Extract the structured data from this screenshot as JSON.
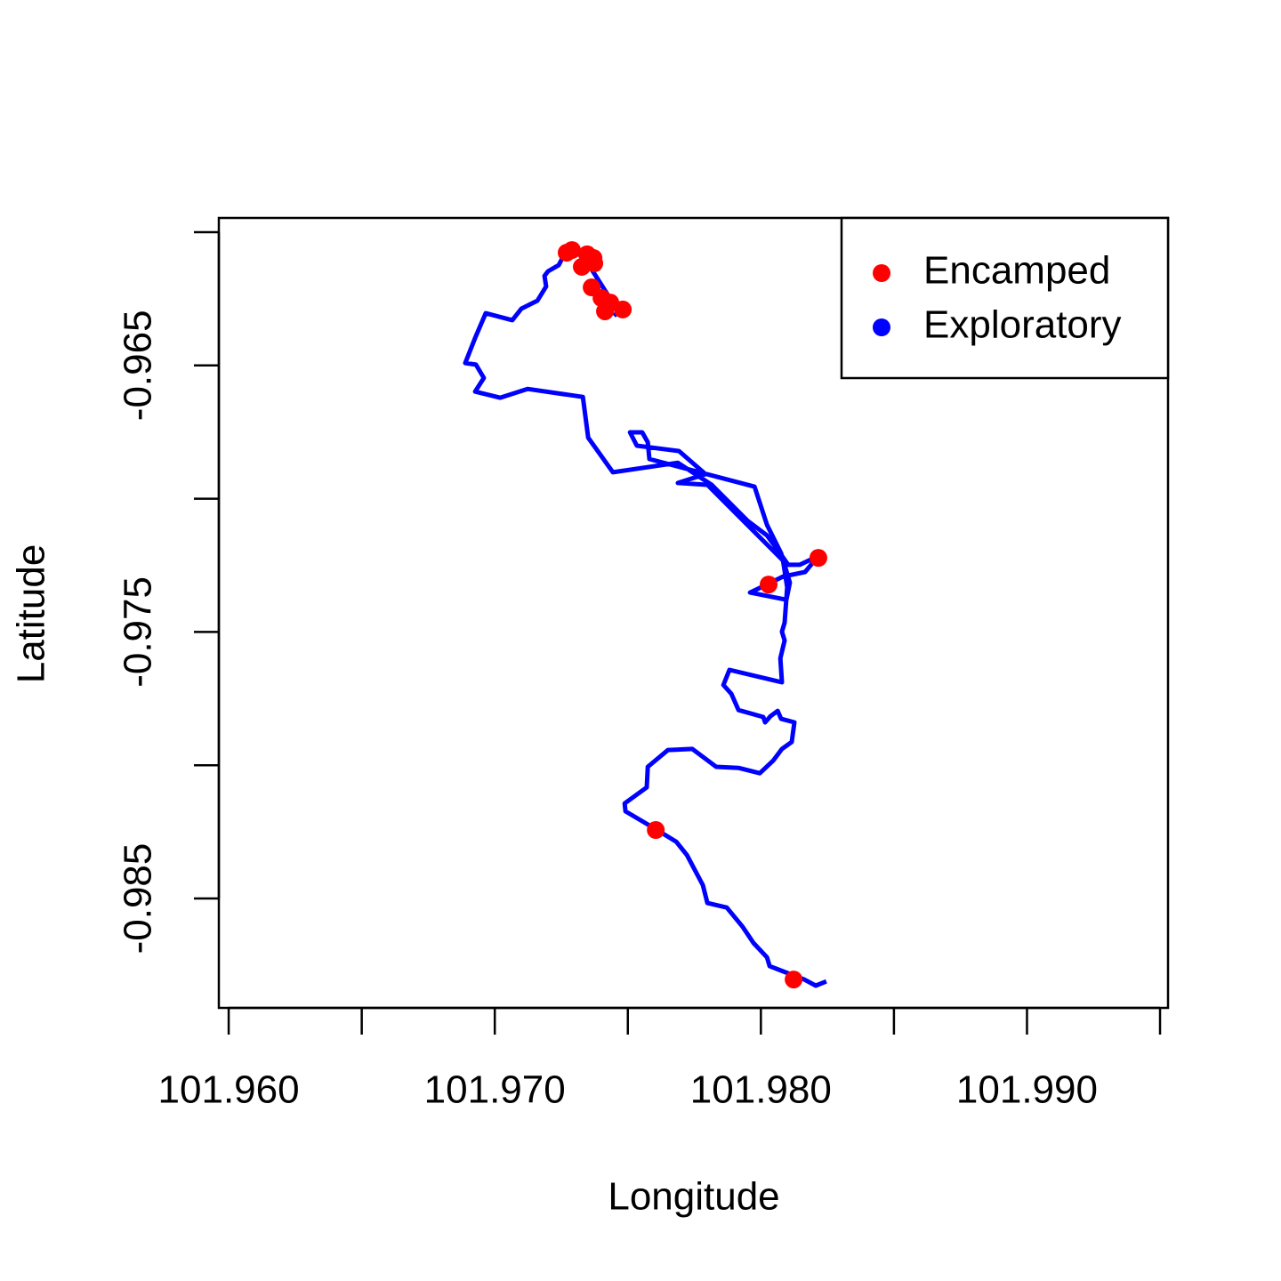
{
  "chart_data": {
    "type": "line",
    "xlabel": "Longitude",
    "ylabel": "Latitude",
    "xlim": [
      101.95963,
      101.9953
    ],
    "ylim": [
      -0.989105,
      -0.959466
    ],
    "xticks": [
      {
        "value": 101.96,
        "label": "101.960"
      },
      {
        "value": 101.965,
        "label": null
      },
      {
        "value": 101.97,
        "label": "101.970"
      },
      {
        "value": 101.975,
        "label": null
      },
      {
        "value": 101.98,
        "label": "101.980"
      },
      {
        "value": 101.985,
        "label": null
      },
      {
        "value": 101.99,
        "label": "101.990"
      },
      {
        "value": 101.995,
        "label": null
      }
    ],
    "yticks": [
      {
        "value": -0.96,
        "label": null
      },
      -0.965,
      {
        "value": -0.97,
        "label": null
      },
      -0.975,
      {
        "value": -0.98,
        "label": null
      },
      -0.985
    ],
    "legend": "top-right",
    "series": [
      {
        "name": "Encamped",
        "color": "#ff0000",
        "mode": "markers",
        "x": [
          101.9729,
          101.9727,
          101.97347,
          101.97371,
          101.97374,
          101.97327,
          101.97364,
          101.97401,
          101.97434,
          101.97481,
          101.97414,
          101.98216,
          101.98029,
          101.97605,
          101.98123
        ],
        "values": [
          -0.96067,
          -0.96077,
          -0.96083,
          -0.96097,
          -0.96117,
          -0.9613,
          -0.96207,
          -0.96247,
          -0.96264,
          -0.9629,
          -0.96297,
          -0.97222,
          -0.97322,
          -0.98243,
          -0.98804
        ]
      },
      {
        "name": "Exploratory",
        "color": "#0000ff",
        "mode": "lines",
        "x": [
          101.97448,
          101.97464,
          101.97347,
          101.97314,
          101.9728,
          101.97254,
          101.9724,
          101.972,
          101.97187,
          101.97193,
          101.9716,
          101.971,
          101.97066,
          101.96966,
          101.96926,
          101.96889,
          101.96929,
          101.96959,
          101.96926,
          101.9702,
          101.97123,
          101.97331,
          101.97351,
          101.97444,
          101.97688,
          101.97815,
          101.97949,
          101.98023,
          101.98063,
          101.98103,
          101.98146,
          101.98216,
          101.98166,
          101.98083,
          101.98016,
          101.97959,
          101.98096,
          101.98109,
          101.98076,
          101.98023,
          101.97976,
          101.97581,
          101.97575,
          101.97554,
          101.97508,
          101.97534,
          101.97692,
          101.97792,
          101.97688,
          101.97799,
          101.98083,
          101.98099,
          101.98089,
          101.98079,
          101.98089,
          101.98073,
          101.98079,
          101.97882,
          101.97859,
          101.97889,
          101.97916,
          101.98009,
          101.98016,
          101.98036,
          101.98063,
          101.98076,
          101.98126,
          101.98116,
          101.98079,
          101.98046,
          101.97996,
          101.97916,
          101.97832,
          101.97742,
          101.97651,
          101.97575,
          101.97571,
          101.97488,
          101.97491,
          101.97605,
          101.97682,
          101.97722,
          101.97782,
          101.97799,
          101.97872,
          101.97932,
          101.97972,
          101.98023,
          101.98033,
          101.98093,
          101.98163,
          101.98206,
          101.98246
        ],
        "values": [
          -0.96314,
          -0.96297,
          -0.96113,
          -0.9608,
          -0.96073,
          -0.96097,
          -0.96124,
          -0.96147,
          -0.96164,
          -0.96204,
          -0.96257,
          -0.96287,
          -0.9633,
          -0.96304,
          -0.96397,
          -0.96491,
          -0.96497,
          -0.96547,
          -0.96598,
          -0.96621,
          -0.96588,
          -0.96618,
          -0.96771,
          -0.96901,
          -0.96865,
          -0.96948,
          -0.97082,
          -0.97138,
          -0.97192,
          -0.97248,
          -0.97248,
          -0.97215,
          -0.97275,
          -0.97292,
          -0.97325,
          -0.97352,
          -0.97379,
          -0.97315,
          -0.97205,
          -0.97098,
          -0.96955,
          -0.96851,
          -0.96788,
          -0.96751,
          -0.96751,
          -0.96801,
          -0.96821,
          -0.96908,
          -0.96941,
          -0.96948,
          -0.97232,
          -0.97332,
          -0.97465,
          -0.97499,
          -0.97532,
          -0.97599,
          -0.97689,
          -0.97642,
          -0.97699,
          -0.97732,
          -0.97793,
          -0.97819,
          -0.97839,
          -0.97816,
          -0.97796,
          -0.97826,
          -0.97839,
          -0.97913,
          -0.97939,
          -0.97983,
          -0.9803,
          -0.9801,
          -0.98006,
          -0.97939,
          -0.97943,
          -0.98006,
          -0.98083,
          -0.98143,
          -0.98173,
          -0.9824,
          -0.98287,
          -0.98337,
          -0.9845,
          -0.98517,
          -0.98534,
          -0.98607,
          -0.98667,
          -0.98721,
          -0.98754,
          -0.98777,
          -0.98804,
          -0.98827,
          -0.98811
        ]
      }
    ]
  }
}
